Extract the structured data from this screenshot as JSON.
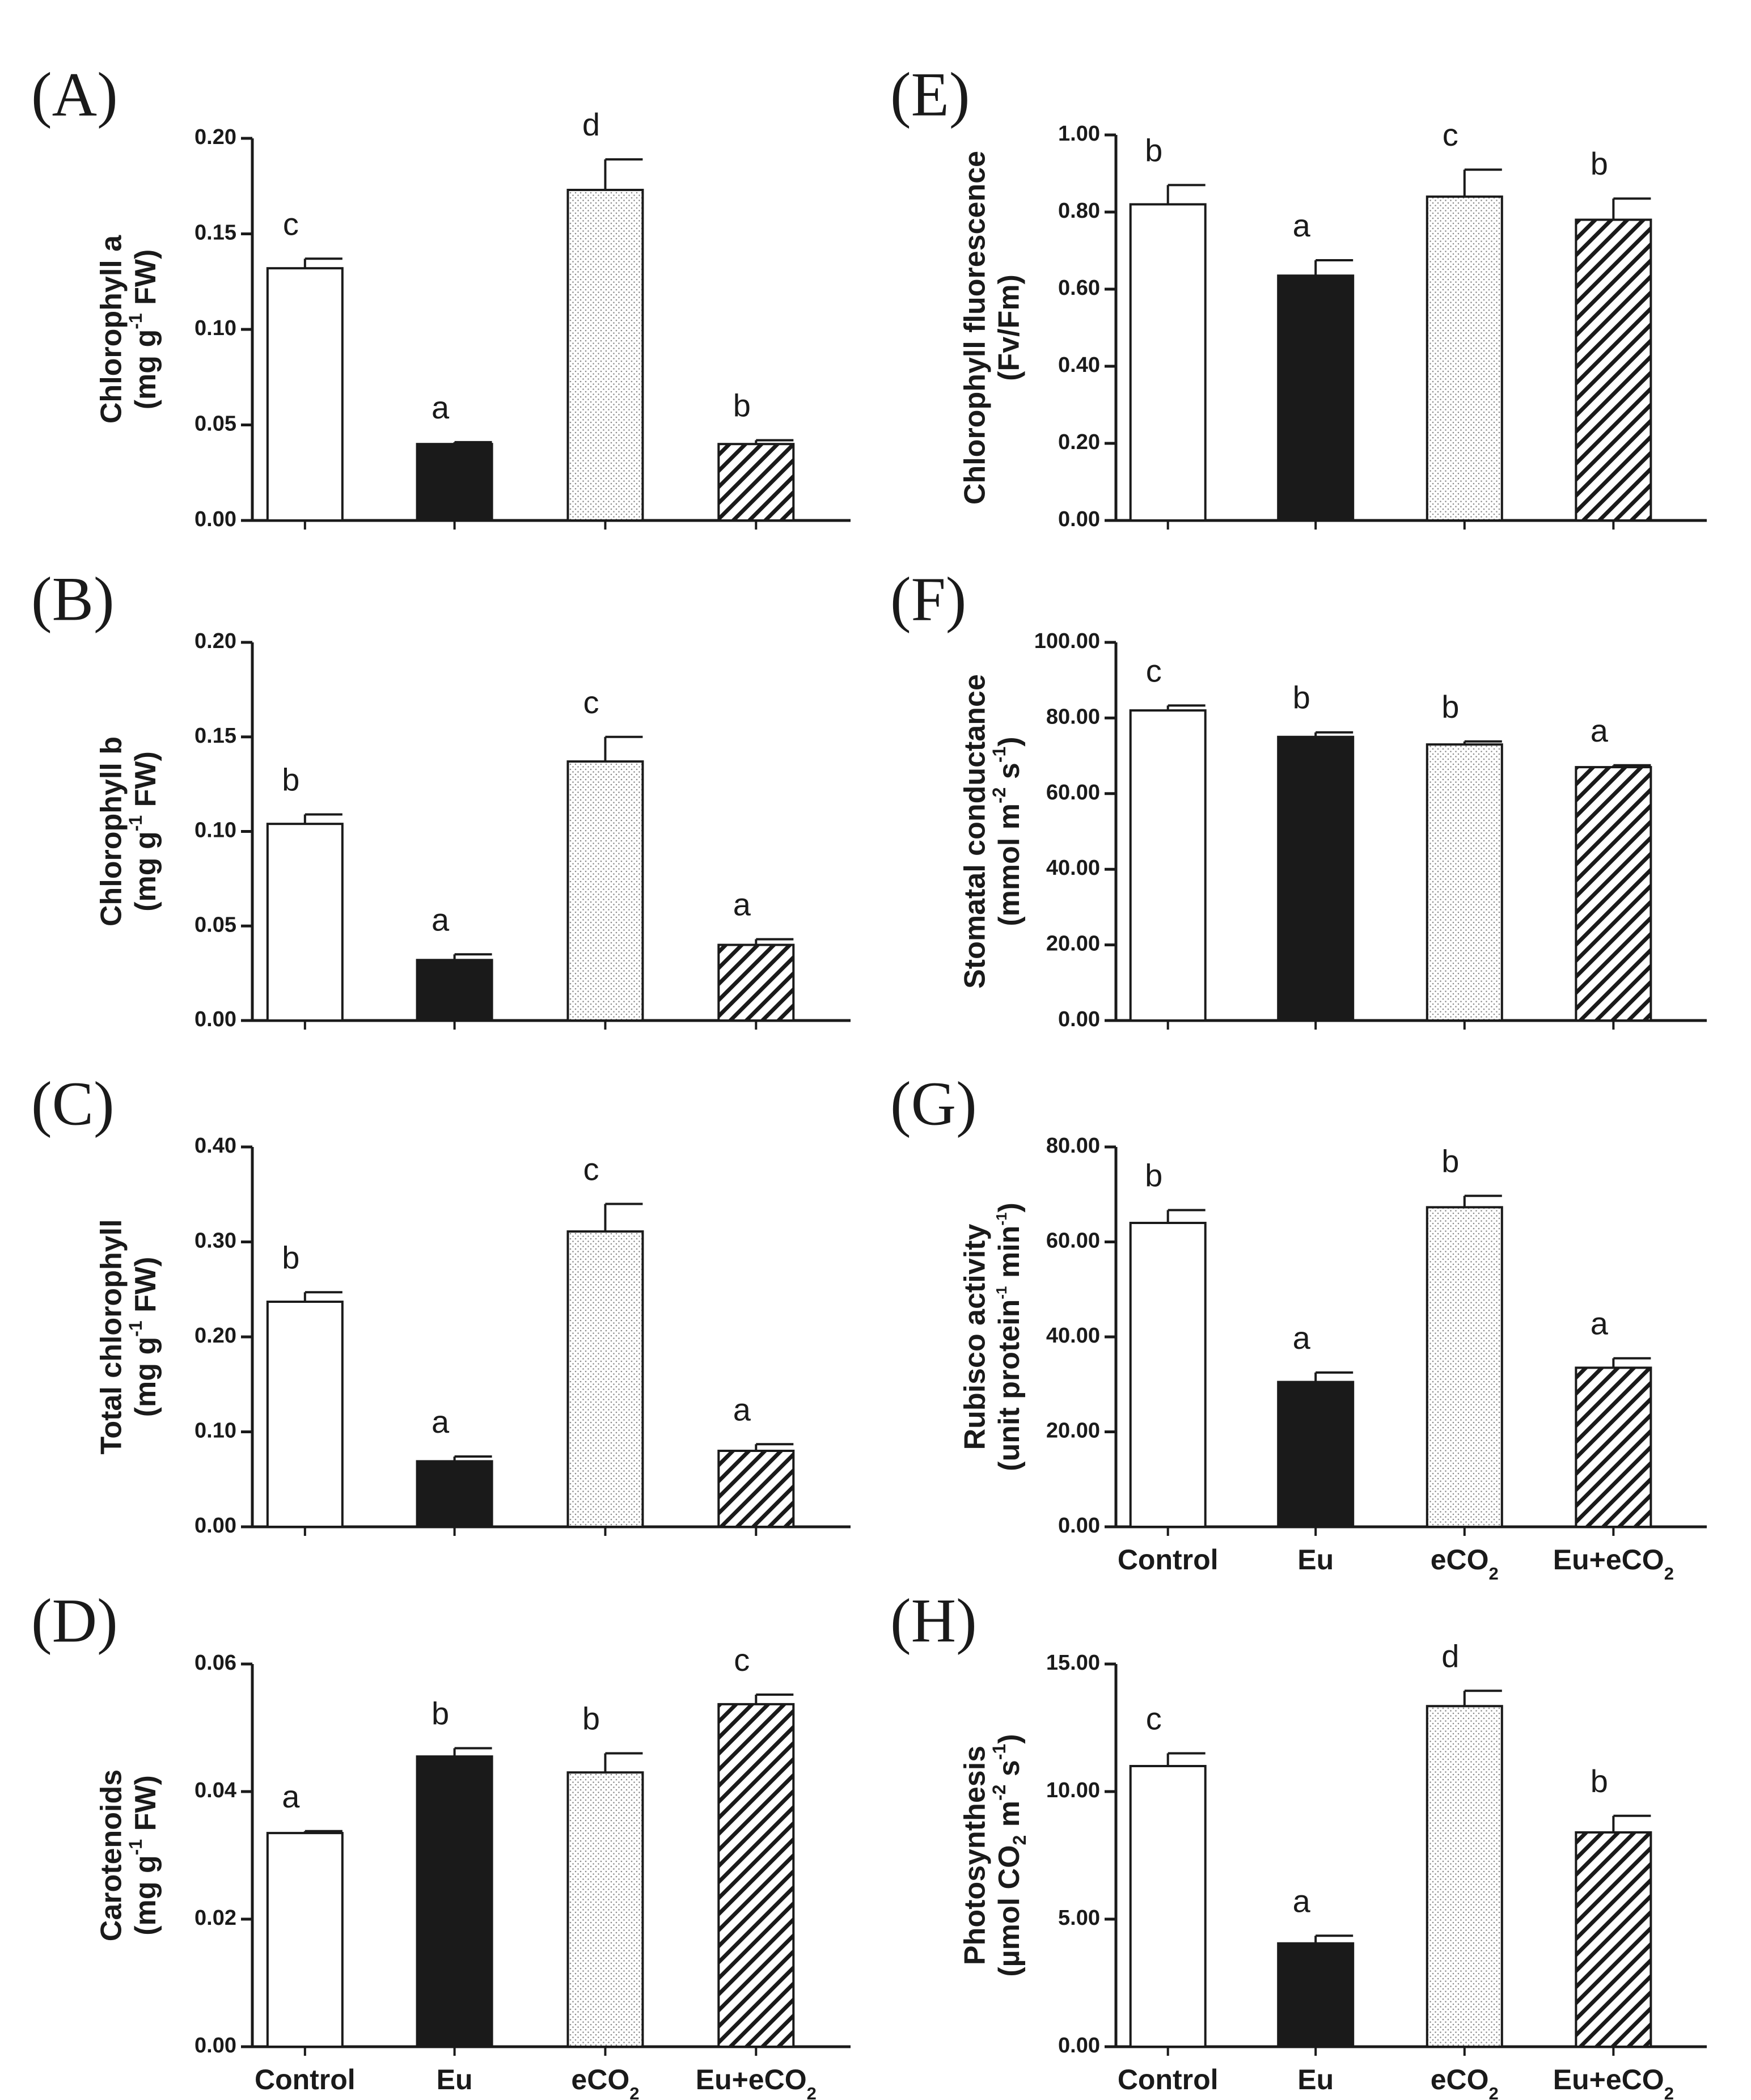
{
  "figure": {
    "categories": [
      "Control",
      "Eu",
      "eCO2",
      "Eu+eCO2"
    ],
    "category_labels": [
      {
        "text": "Control"
      },
      {
        "text": "Eu"
      },
      {
        "text": "eCO",
        "sub": "2"
      },
      {
        "text": "Eu+eCO",
        "sub": "2"
      }
    ],
    "fills": [
      "white",
      "black",
      "dotted",
      "hatched"
    ],
    "colors": {
      "ink": "#1a1a1a",
      "white": "#ffffff",
      "dot": "#8a8a8a"
    }
  },
  "chart_data": [
    {
      "type": "bar",
      "panel": "(A)",
      "title": "",
      "ylabel": [
        {
          "text": "Chlorophyll a"
        },
        {
          "parts": [
            {
              "t": "(mg g"
            },
            {
              "t": "-1",
              "sup": true
            },
            {
              "t": " FW)"
            }
          ]
        }
      ],
      "ylim": [
        0,
        0.2
      ],
      "yticks": [
        0,
        0.05,
        0.1,
        0.15,
        0.2
      ],
      "ytick_labels": [
        "0.00",
        "0.05",
        "0.10",
        "0.15",
        "0.20"
      ],
      "categories": [
        "Control",
        "Eu",
        "eCO2",
        "Eu+eCO2"
      ],
      "values": [
        0.132,
        0.04,
        0.173,
        0.04
      ],
      "errors": [
        0.005,
        0.001,
        0.016,
        0.002
      ],
      "letters": [
        "c",
        "a",
        "d",
        "b"
      ],
      "show_category_labels": false
    },
    {
      "type": "bar",
      "panel": "(B)",
      "title": "",
      "ylabel": [
        {
          "text": "Chlorophyll b"
        },
        {
          "parts": [
            {
              "t": "(mg g"
            },
            {
              "t": "-1",
              "sup": true
            },
            {
              "t": " FW)"
            }
          ]
        }
      ],
      "ylim": [
        0,
        0.2
      ],
      "yticks": [
        0,
        0.05,
        0.1,
        0.15,
        0.2
      ],
      "ytick_labels": [
        "0.00",
        "0.05",
        "0.10",
        "0.15",
        "0.20"
      ],
      "categories": [
        "Control",
        "Eu",
        "eCO2",
        "Eu+eCO2"
      ],
      "values": [
        0.104,
        0.032,
        0.137,
        0.04
      ],
      "errors": [
        0.005,
        0.003,
        0.013,
        0.003
      ],
      "letters": [
        "b",
        "a",
        "c",
        "a"
      ],
      "show_category_labels": false
    },
    {
      "type": "bar",
      "panel": "(C)",
      "title": "",
      "ylabel": [
        {
          "text": "Total chlorophyll"
        },
        {
          "parts": [
            {
              "t": "(mg g"
            },
            {
              "t": "-1",
              "sup": true
            },
            {
              "t": " FW)"
            }
          ]
        }
      ],
      "ylim": [
        0,
        0.4
      ],
      "yticks": [
        0,
        0.1,
        0.2,
        0.3,
        0.4
      ],
      "ytick_labels": [
        "0.00",
        "0.10",
        "0.20",
        "0.30",
        "0.40"
      ],
      "categories": [
        "Control",
        "Eu",
        "eCO2",
        "Eu+eCO2"
      ],
      "values": [
        0.237,
        0.069,
        0.311,
        0.08
      ],
      "errors": [
        0.01,
        0.005,
        0.029,
        0.007
      ],
      "letters": [
        "b",
        "a",
        "c",
        "a"
      ],
      "show_category_labels": false
    },
    {
      "type": "bar",
      "panel": "(D)",
      "title": "",
      "ylabel": [
        {
          "text": "Carotenoids"
        },
        {
          "parts": [
            {
              "t": "(mg g"
            },
            {
              "t": "-1",
              "sup": true
            },
            {
              "t": " FW)"
            }
          ]
        }
      ],
      "ylim": [
        0,
        0.06
      ],
      "yticks": [
        0,
        0.02,
        0.04,
        0.06
      ],
      "ytick_labels": [
        "0.00",
        "0.02",
        "0.04",
        "0.06"
      ],
      "categories": [
        "Control",
        "Eu",
        "eCO2",
        "Eu+eCO2"
      ],
      "values": [
        0.0335,
        0.0455,
        0.043,
        0.0537
      ],
      "errors": [
        0.0003,
        0.0013,
        0.003,
        0.0015
      ],
      "letters": [
        "a",
        "b",
        "b",
        "c"
      ],
      "show_category_labels": true
    },
    {
      "type": "bar",
      "panel": "(E)",
      "title": "",
      "ylabel": [
        {
          "text": "Chlorophyll fluorescence"
        },
        {
          "text": "(Fv/Fm)"
        }
      ],
      "ylim": [
        0,
        1.0
      ],
      "yticks": [
        0,
        0.2,
        0.4,
        0.6,
        0.8,
        1.0
      ],
      "ytick_labels": [
        "0.00",
        "0.20",
        "0.40",
        "0.60",
        "0.80",
        "1.00"
      ],
      "categories": [
        "Control",
        "Eu",
        "eCO2",
        "Eu+eCO2"
      ],
      "values": [
        0.82,
        0.635,
        0.84,
        0.78
      ],
      "errors": [
        0.05,
        0.04,
        0.07,
        0.055
      ],
      "letters": [
        "b",
        "a",
        "c",
        "b"
      ],
      "show_category_labels": false
    },
    {
      "type": "bar",
      "panel": "(F)",
      "title": "",
      "ylabel": [
        {
          "text": "Stomatal conductance"
        },
        {
          "parts": [
            {
              "t": "(mmol m"
            },
            {
              "t": "-2",
              "sup": true
            },
            {
              "t": " s"
            },
            {
              "t": "-1",
              "sup": true
            },
            {
              "t": ")"
            }
          ]
        }
      ],
      "ylim": [
        0,
        100
      ],
      "yticks": [
        0,
        20,
        40,
        60,
        80,
        100
      ],
      "ytick_labels": [
        "0.00",
        "20.00",
        "40.00",
        "60.00",
        "80.00",
        "100.00"
      ],
      "categories": [
        "Control",
        "Eu",
        "eCO2",
        "Eu+eCO2"
      ],
      "values": [
        82,
        75,
        73,
        67
      ],
      "errors": [
        1.3,
        1.2,
        0.8,
        0.5
      ],
      "letters": [
        "c",
        "b",
        "b",
        "a"
      ],
      "show_category_labels": false
    },
    {
      "type": "bar",
      "panel": "(G)",
      "title": "",
      "ylabel": [
        {
          "text": "Rubisco activity"
        },
        {
          "parts": [
            {
              "t": "(unit protein"
            },
            {
              "t": "-1",
              "sup": true
            },
            {
              "t": " min"
            },
            {
              "t": "-1",
              "sup": true
            },
            {
              "t": ")"
            }
          ],
          "small": true
        }
      ],
      "ylim": [
        0,
        80
      ],
      "yticks": [
        0,
        20,
        40,
        60,
        80
      ],
      "ytick_labels": [
        "0.00",
        "20.00",
        "40.00",
        "60.00",
        "80.00"
      ],
      "categories": [
        "Control",
        "Eu",
        "eCO2",
        "Eu+eCO2"
      ],
      "values": [
        64,
        30.5,
        67.3,
        33.5
      ],
      "errors": [
        2.7,
        2.0,
        2.4,
        2.0
      ],
      "letters": [
        "b",
        "a",
        "b",
        "a"
      ],
      "show_category_labels": true
    },
    {
      "type": "bar",
      "panel": "(H)",
      "title": "",
      "ylabel": [
        {
          "text": "Photosynthesis"
        },
        {
          "parts": [
            {
              "t": "(µmol CO"
            },
            {
              "t": "2",
              "sub": true
            },
            {
              "t": " m"
            },
            {
              "t": "-2",
              "sup": true
            },
            {
              "t": " s"
            },
            {
              "t": "-1",
              "sup": true
            },
            {
              "t": ")"
            }
          ]
        }
      ],
      "ylim": [
        0,
        15
      ],
      "yticks": [
        0,
        5,
        10,
        15
      ],
      "ytick_labels": [
        "0.00",
        "5.00",
        "10.00",
        "15.00"
      ],
      "categories": [
        "Control",
        "Eu",
        "eCO2",
        "Eu+eCO2"
      ],
      "values": [
        11.0,
        4.05,
        13.35,
        8.4
      ],
      "errors": [
        0.5,
        0.3,
        0.6,
        0.65
      ],
      "letters": [
        "c",
        "a",
        "d",
        "b"
      ],
      "show_category_labels": true
    }
  ]
}
